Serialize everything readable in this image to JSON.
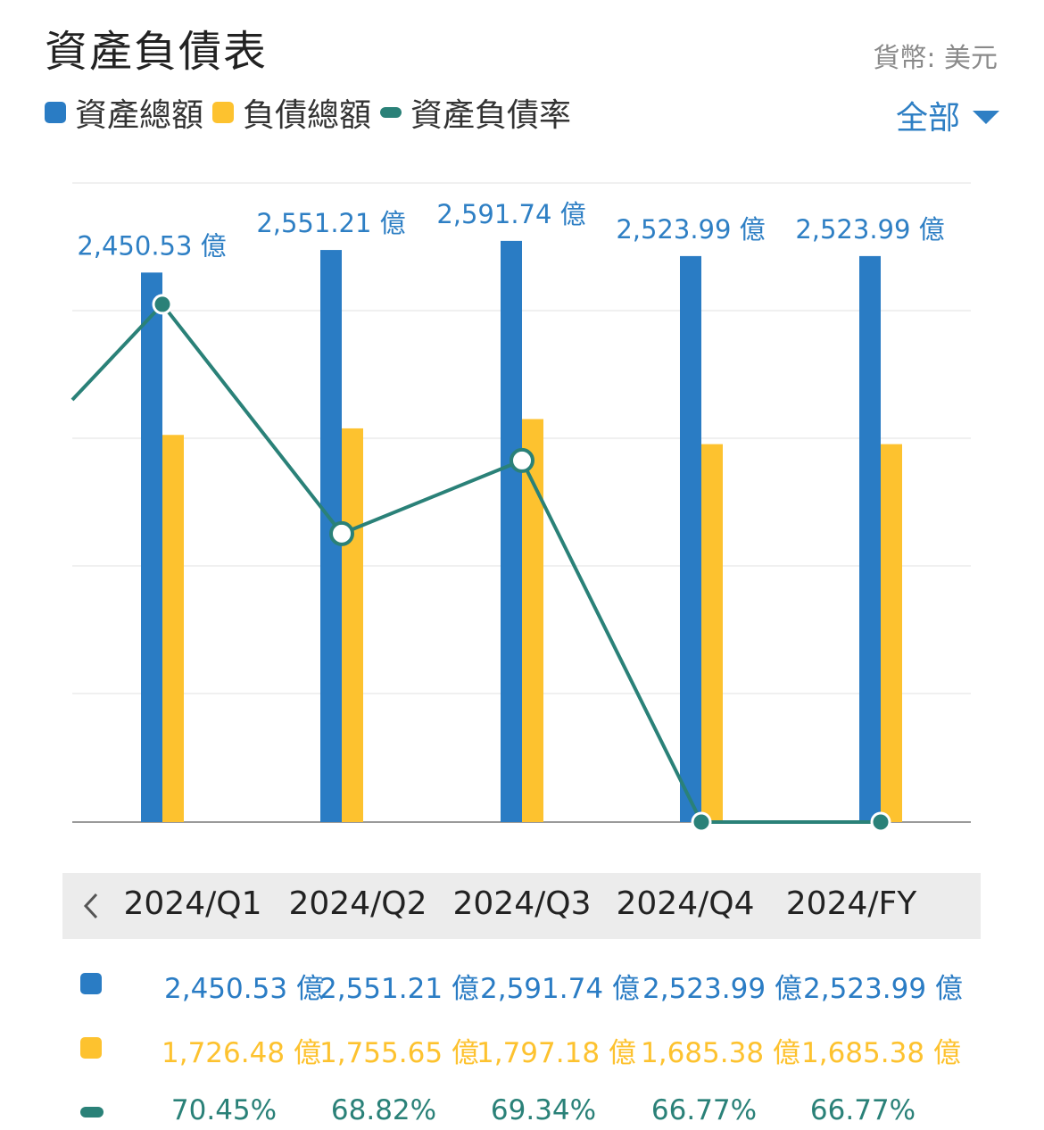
{
  "title": "資產負債表",
  "currency_label": "貨幣: 美元",
  "legend": [
    {
      "label": "資產總額",
      "color": "#2a7cc4",
      "shape": "square"
    },
    {
      "label": "負債總額",
      "color": "#fdc22f",
      "shape": "square"
    },
    {
      "label": "資產負債率",
      "color": "#2a8178",
      "shape": "line"
    }
  ],
  "filter": {
    "label": "全部"
  },
  "periods": [
    "2024/Q1",
    "2024/Q2",
    "2024/Q3",
    "2024/Q4",
    "2024/FY"
  ],
  "table": {
    "assets": [
      "2,450.53 億",
      "2,551.21 億",
      "2,591.74 億",
      "2,523.99 億",
      "2,523.99 億"
    ],
    "liabilities": [
      "1,726.48 億",
      "1,755.65 億",
      "1,797.18 億",
      "1,685.38 億",
      "1,685.38 億"
    ],
    "ratio": [
      "70.45%",
      "68.82%",
      "69.34%",
      "66.77%",
      "66.77%"
    ]
  },
  "chart_data": {
    "type": "bar",
    "categories": [
      "2024/Q1",
      "2024/Q2",
      "2024/Q3",
      "2024/Q4",
      "2024/FY"
    ],
    "series": [
      {
        "name": "資產總額",
        "kind": "bar",
        "color": "#2a7cc4",
        "unit": "億",
        "values": [
          2450.53,
          2551.21,
          2591.74,
          2523.99,
          2523.99
        ],
        "data_labels": [
          "2,450.53 億",
          "2,551.21 億",
          "2,591.74 億",
          "2,523.99 億",
          "2,523.99 億"
        ]
      },
      {
        "name": "負債總額",
        "kind": "bar",
        "color": "#fdc22f",
        "unit": "億",
        "values": [
          1726.48,
          1755.65,
          1797.18,
          1685.38,
          1685.38
        ]
      },
      {
        "name": "資產負債率",
        "kind": "line",
        "color": "#2a8178",
        "unit": "%",
        "values": [
          70.45,
          68.82,
          69.34,
          66.77,
          66.77
        ]
      }
    ],
    "bar_axis_range": [
      0,
      2850
    ],
    "ratio_axis_range": [
      66.77,
      70.9
    ],
    "grid": true,
    "legend_position": "top-left"
  }
}
